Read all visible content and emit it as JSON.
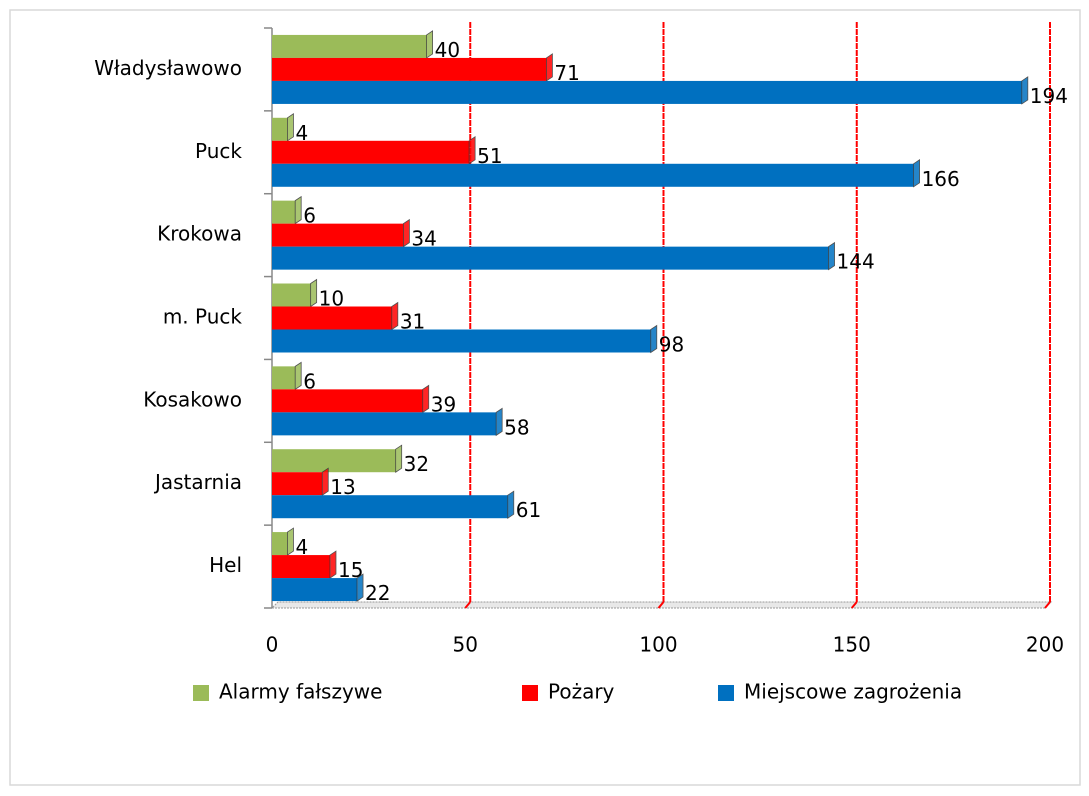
{
  "chart_data": {
    "type": "bar",
    "orientation": "horizontal",
    "categories": [
      "Władysławowo",
      "Puck",
      "Krokowa",
      "m. Puck",
      "Kosakowo",
      "Jastarnia",
      "Hel"
    ],
    "series": [
      {
        "name": "Alarmy fałszywe",
        "color": "#9bbb59",
        "values": [
          40,
          4,
          6,
          10,
          6,
          32,
          4
        ]
      },
      {
        "name": "Pożary",
        "color": "#ff0000",
        "values": [
          71,
          51,
          34,
          31,
          39,
          13,
          15
        ]
      },
      {
        "name": "Miejscowe zagrożenia",
        "color": "#0070c0",
        "values": [
          194,
          166,
          144,
          98,
          58,
          61,
          22
        ]
      }
    ],
    "xlim": [
      0,
      200
    ],
    "xticks": [
      0,
      50,
      100,
      150,
      200
    ],
    "grid": true,
    "grid_color": "#ff0000",
    "legend": "bottom"
  }
}
